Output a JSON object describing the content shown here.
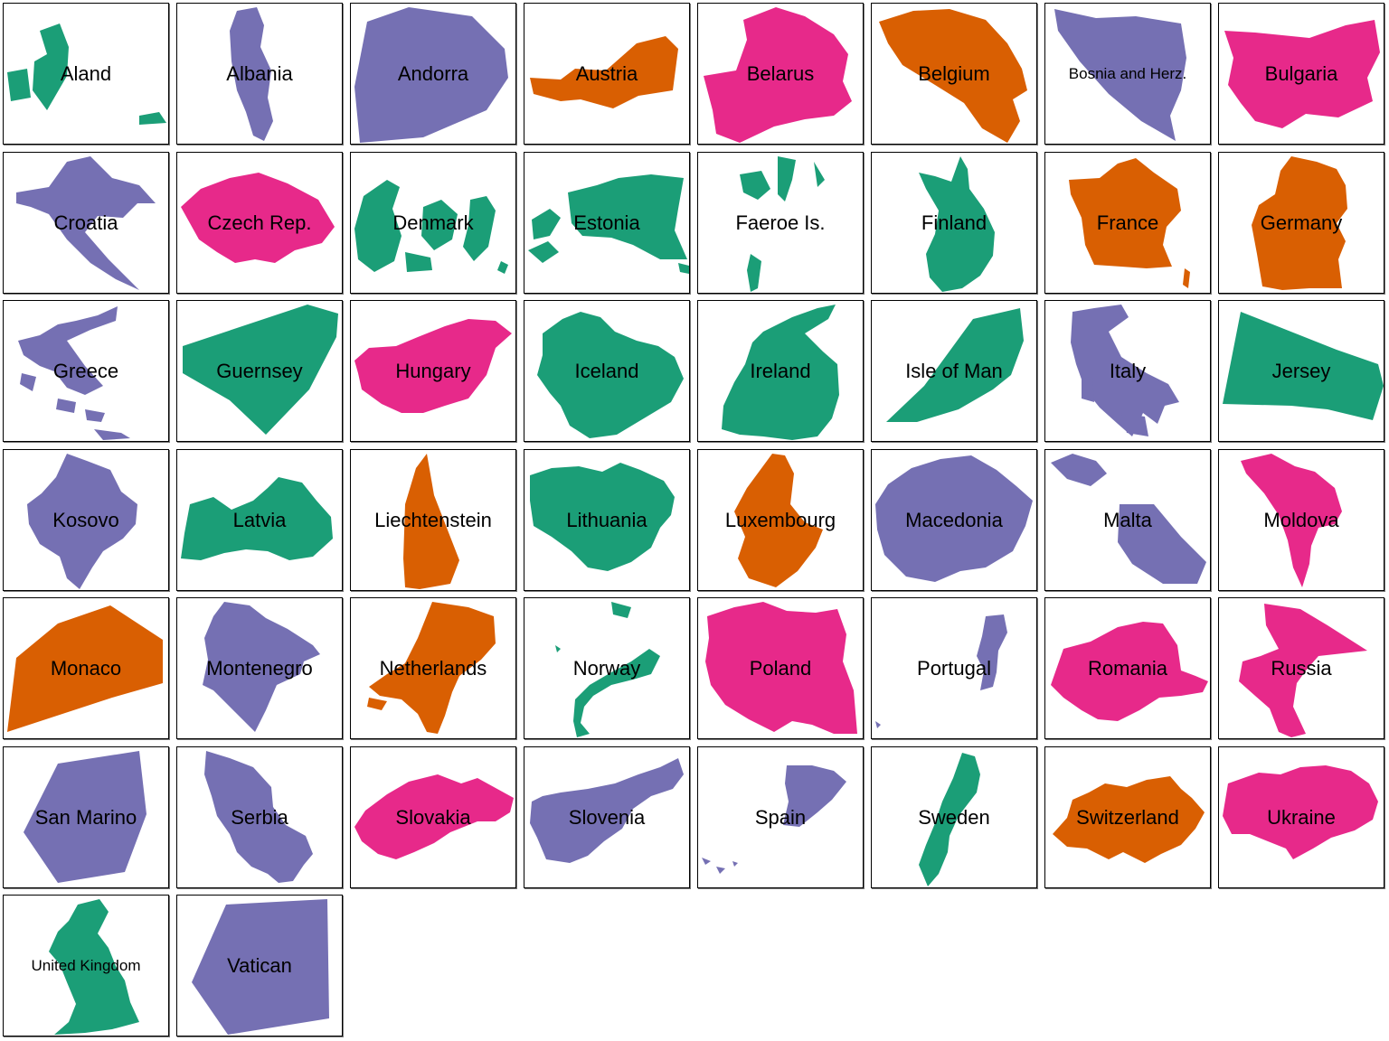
{
  "palette": {
    "green": "#1b9e77",
    "orange": "#d95f02",
    "purple": "#7570b3",
    "pink": "#e7298a"
  },
  "countries": [
    {
      "name": "Aland",
      "color": "green"
    },
    {
      "name": "Albania",
      "color": "purple"
    },
    {
      "name": "Andorra",
      "color": "purple"
    },
    {
      "name": "Austria",
      "color": "orange"
    },
    {
      "name": "Belarus",
      "color": "pink"
    },
    {
      "name": "Belgium",
      "color": "orange"
    },
    {
      "name": "Bosnia and Herz.",
      "color": "purple"
    },
    {
      "name": "Bulgaria",
      "color": "pink"
    },
    {
      "name": "Croatia",
      "color": "purple"
    },
    {
      "name": "Czech Rep.",
      "color": "pink"
    },
    {
      "name": "Denmark",
      "color": "green"
    },
    {
      "name": "Estonia",
      "color": "green"
    },
    {
      "name": "Faeroe Is.",
      "color": "green"
    },
    {
      "name": "Finland",
      "color": "green"
    },
    {
      "name": "France",
      "color": "orange"
    },
    {
      "name": "Germany",
      "color": "orange"
    },
    {
      "name": "Greece",
      "color": "purple"
    },
    {
      "name": "Guernsey",
      "color": "green"
    },
    {
      "name": "Hungary",
      "color": "pink"
    },
    {
      "name": "Iceland",
      "color": "green"
    },
    {
      "name": "Ireland",
      "color": "green"
    },
    {
      "name": "Isle of Man",
      "color": "green"
    },
    {
      "name": "Italy",
      "color": "purple"
    },
    {
      "name": "Jersey",
      "color": "green"
    },
    {
      "name": "Kosovo",
      "color": "purple"
    },
    {
      "name": "Latvia",
      "color": "green"
    },
    {
      "name": "Liechtenstein",
      "color": "orange"
    },
    {
      "name": "Lithuania",
      "color": "green"
    },
    {
      "name": "Luxembourg",
      "color": "orange"
    },
    {
      "name": "Macedonia",
      "color": "purple"
    },
    {
      "name": "Malta",
      "color": "purple"
    },
    {
      "name": "Moldova",
      "color": "pink"
    },
    {
      "name": "Monaco",
      "color": "orange"
    },
    {
      "name": "Montenegro",
      "color": "purple"
    },
    {
      "name": "Netherlands",
      "color": "orange"
    },
    {
      "name": "Norway",
      "color": "green"
    },
    {
      "name": "Poland",
      "color": "pink"
    },
    {
      "name": "Portugal",
      "color": "purple"
    },
    {
      "name": "Romania",
      "color": "pink"
    },
    {
      "name": "Russia",
      "color": "pink"
    },
    {
      "name": "San Marino",
      "color": "purple"
    },
    {
      "name": "Serbia",
      "color": "purple"
    },
    {
      "name": "Slovakia",
      "color": "pink"
    },
    {
      "name": "Slovenia",
      "color": "purple"
    },
    {
      "name": "Spain",
      "color": "purple"
    },
    {
      "name": "Sweden",
      "color": "green"
    },
    {
      "name": "Switzerland",
      "color": "orange"
    },
    {
      "name": "Ukraine",
      "color": "pink"
    },
    {
      "name": "United Kingdom",
      "color": "green"
    },
    {
      "name": "Vatican",
      "color": "purple"
    }
  ]
}
